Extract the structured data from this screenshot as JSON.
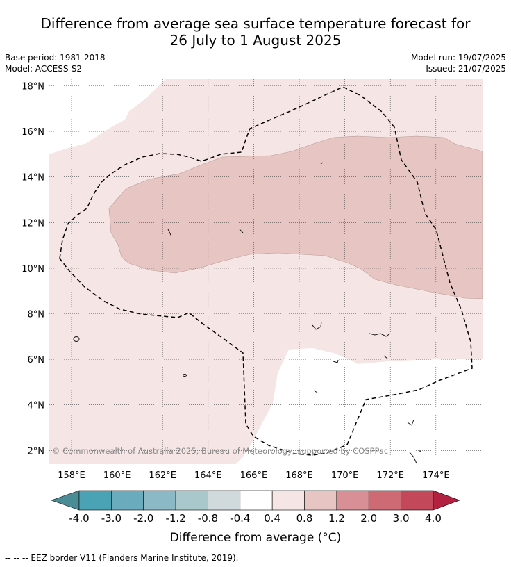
{
  "title": {
    "line1": "Difference from average sea surface temperature forecast for",
    "line2": "26 July to 1 August 2025"
  },
  "meta": {
    "base_period": "Base period: 1981-2018",
    "model": "Model: ACCESS-S2",
    "model_run": "Model run: 19/07/2025",
    "issued": "Issued: 21/07/2025"
  },
  "map": {
    "lat_labels": [
      "18°N",
      "16°N",
      "14°N",
      "12°N",
      "10°N",
      "8°N",
      "6°N",
      "4°N",
      "2°N"
    ],
    "lon_labels": [
      "158°E",
      "160°E",
      "162°E",
      "164°E",
      "166°E",
      "168°E",
      "170°E",
      "172°E",
      "174°E"
    ],
    "copyright": "© Commonwealth of Australia 2025, Bureau of Meteorology, supported by COSPPac",
    "colors": {
      "light_band": "#f5e6e5",
      "mid_band": "#e7c5c2",
      "gridline": "#444444"
    }
  },
  "colorbar": {
    "ticks": [
      "-4.0",
      "-3.0",
      "-2.0",
      "-1.2",
      "-0.8",
      "-0.4",
      "0.4",
      "0.8",
      "1.2",
      "2.0",
      "3.0",
      "4.0"
    ],
    "colors": [
      "#4a8c96",
      "#4aa3b4",
      "#6aacbe",
      "#8bb9c5",
      "#a9c8cc",
      "#d0d9db",
      "#ffffff",
      "#f5e6e5",
      "#e7c5c2",
      "#d98f96",
      "#cd6a74",
      "#c2485a",
      "#b2213f"
    ],
    "label": "Difference from average (°C)"
  },
  "footer": "--  --  -- EEZ border V11 (Flanders Marine Institute, 2019)."
}
